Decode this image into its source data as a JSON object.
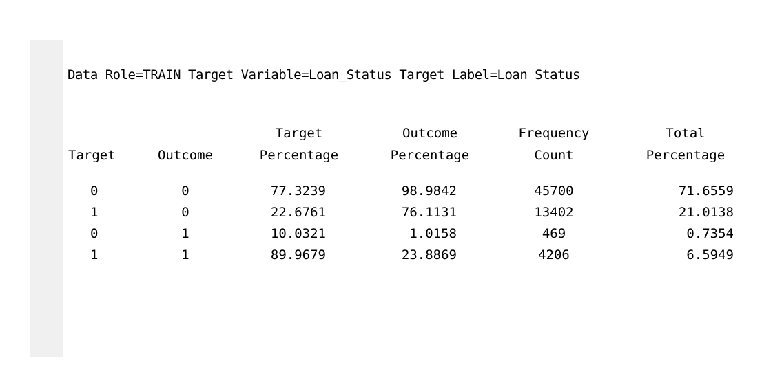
{
  "report": {
    "title": "Data Role=TRAIN Target Variable=Loan_Status Target Label=Loan Status"
  },
  "table": {
    "headers": {
      "target": {
        "line1": "",
        "line2": "Target"
      },
      "outcome": {
        "line1": "",
        "line2": "Outcome"
      },
      "target_pct": {
        "line1": "Target",
        "line2": "Percentage"
      },
      "outcome_pct": {
        "line1": "Outcome",
        "line2": "Percentage"
      },
      "freq": {
        "line1": "Frequency",
        "line2": "Count"
      },
      "total_pct": {
        "line1": "Total",
        "line2": "Percentage"
      }
    },
    "rows": [
      {
        "target": "0",
        "outcome": "0",
        "target_pct": "77.3239",
        "outcome_pct": "98.9842",
        "freq": "45700",
        "total_pct": "71.6559"
      },
      {
        "target": "1",
        "outcome": "0",
        "target_pct": "22.6761",
        "outcome_pct": "76.1131",
        "freq": "13402",
        "total_pct": "21.0138"
      },
      {
        "target": "0",
        "outcome": "1",
        "target_pct": "10.0321",
        "outcome_pct": "1.0158",
        "freq": "469",
        "total_pct": "0.7354"
      },
      {
        "target": "1",
        "outcome": "1",
        "target_pct": "89.9679",
        "outcome_pct": "23.8869",
        "freq": "4206",
        "total_pct": "6.5949"
      }
    ]
  }
}
